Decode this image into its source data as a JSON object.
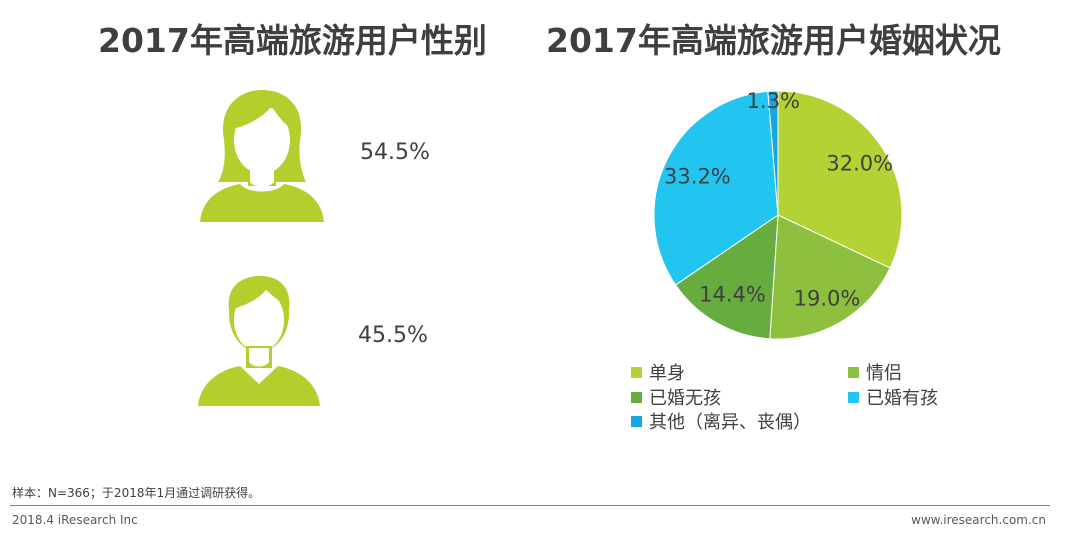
{
  "gender_chart": {
    "title": "2017年高端旅游用户性别",
    "female_percent_label": "54.5%",
    "male_percent_label": "45.5%",
    "icon_color": "#b3cf2e"
  },
  "chart_data": {
    "type": "pie",
    "title": "2017年高端旅游用户婚姻状况",
    "slices": [
      {
        "name": "单身",
        "value": 32.0,
        "label": "32.0%",
        "color": "#b3d233"
      },
      {
        "name": "情侣",
        "value": 19.0,
        "label": "19.0%",
        "color": "#8dc03f"
      },
      {
        "name": "已婚无孩",
        "value": 14.4,
        "label": "14.4%",
        "color": "#66ac3f"
      },
      {
        "name": "已婚有孩",
        "value": 33.2,
        "label": "33.2%",
        "color": "#22c5ef"
      },
      {
        "name": "其他（离异、丧偶）",
        "value": 1.3,
        "label": "1.3%",
        "color": "#14a7e3"
      }
    ],
    "legend_placement": "bottom"
  },
  "footer": {
    "sample_note": "样本：N=366；于2018年1月通过调研获得。",
    "date_brand": "2018.4 iResearch Inc",
    "website": "www.iresearch.com.cn"
  }
}
